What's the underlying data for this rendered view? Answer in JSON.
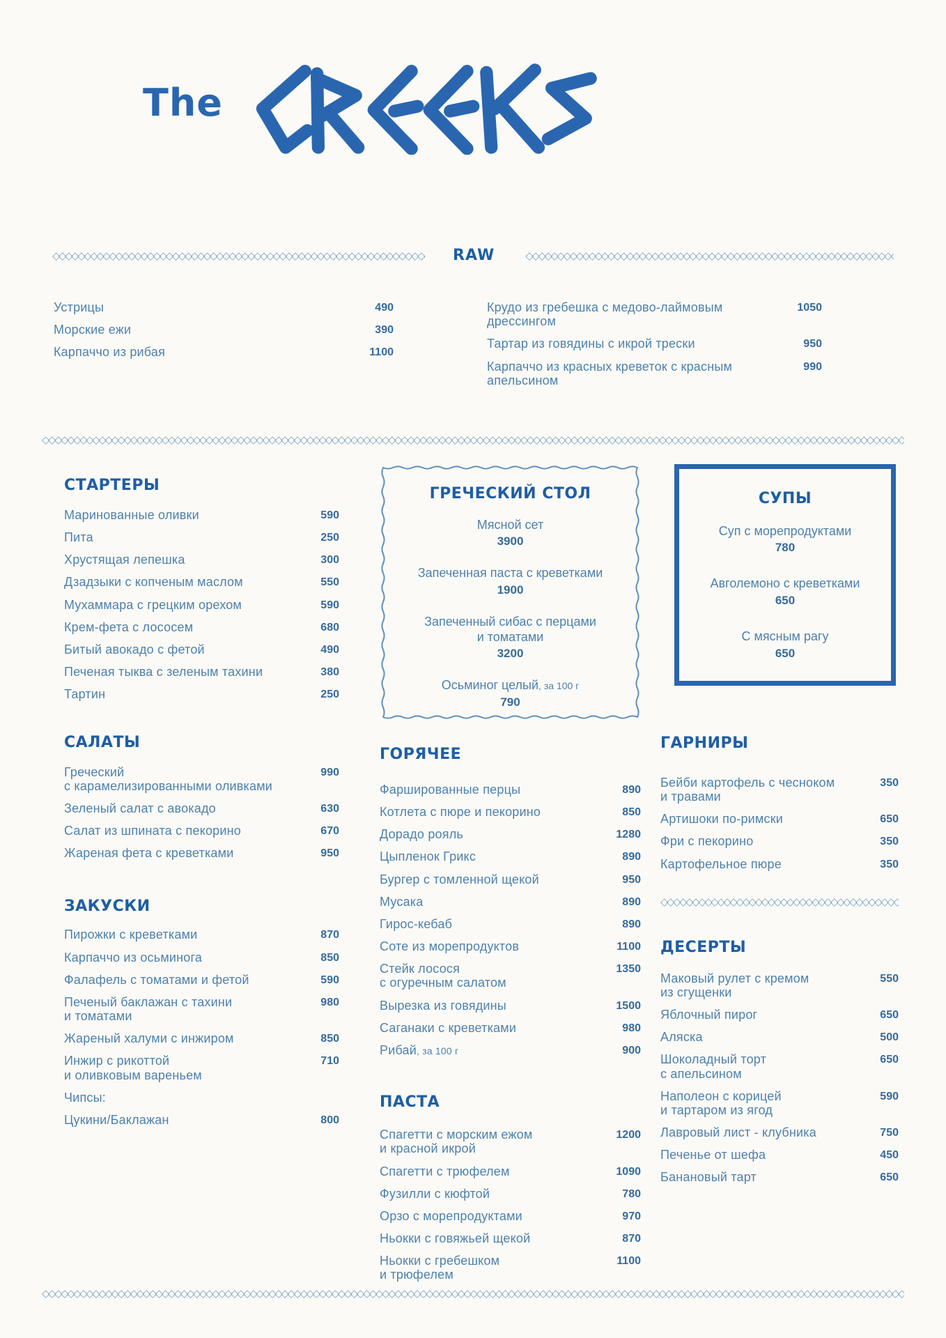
{
  "logo": {
    "the": "The",
    "name": "GREEKS"
  },
  "decor": {
    "divider_glyph": "◇"
  },
  "colors": {
    "paper": "#fbfaf6",
    "heading_blue": "#1e5ea6",
    "item_blue": "#4e81ad",
    "price_blue": "#366b9e",
    "divider_blue": "#7ba3c6",
    "logo_blue": "#2a66b0",
    "soup_box_border": "#2a65ad"
  },
  "raw": {
    "title": "RAW",
    "left": [
      {
        "name": "Устрицы",
        "price": "490"
      },
      {
        "name": "Морские ежи",
        "price": "390"
      },
      {
        "name": "Карпаччо из рибая",
        "price": "1100"
      }
    ],
    "right": [
      {
        "name": "Крудо из гребешка с медово-лаймовым дрессингом",
        "price": "1050"
      },
      {
        "name": "Тартар из говядины с икрой трески",
        "price": "950"
      },
      {
        "name": "Карпаччо из красных креветок с красным апельсином",
        "price": "990"
      }
    ]
  },
  "sections": {
    "starters": {
      "title": "СТАРТЕРЫ",
      "items": [
        {
          "name": "Маринованные оливки",
          "price": "590"
        },
        {
          "name": "Пита",
          "price": "250"
        },
        {
          "name": "Хрустящая лепешка",
          "price": "300"
        },
        {
          "name": "Дзадзыки с копченым маслом",
          "price": "550"
        },
        {
          "name": "Мухаммара с грецким орехом",
          "price": "590"
        },
        {
          "name": "Крем-фета с лососем",
          "price": "680"
        },
        {
          "name": "Битый авокадо с фетой",
          "price": "490"
        },
        {
          "name": "Печеная тыква с зеленым тахини",
          "price": "380"
        },
        {
          "name": "Тартин",
          "price": "250"
        }
      ]
    },
    "salads": {
      "title": "САЛАТЫ",
      "items": [
        {
          "name": "Греческий\nс карамелизированными оливками",
          "price": "990"
        },
        {
          "name": "Зеленый салат с авокадо",
          "price": "630"
        },
        {
          "name": "Салат из шпината с пекорино",
          "price": "670"
        },
        {
          "name": "Жареная фета с креветками",
          "price": "950"
        }
      ]
    },
    "snacks": {
      "title": "ЗАКУСКИ",
      "items": [
        {
          "name": "Пирожки с креветками",
          "price": "870"
        },
        {
          "name": "Карпаччо из осьминога",
          "price": "850"
        },
        {
          "name": "Фалафель с томатами и фетой",
          "price": "590"
        },
        {
          "name": "Печеный баклажан с тахини\nи томатами",
          "price": "980"
        },
        {
          "name": "Жареный халуми с инжиром",
          "price": "850"
        },
        {
          "name": "Инжир с рикоттой\nи оливковым вареньем",
          "price": "710"
        },
        {
          "name": "Чипсы:",
          "price": ""
        },
        {
          "name": "Цукини/Баклажан",
          "price": "800"
        }
      ]
    },
    "greek_table": {
      "title": "ГРЕЧЕСКИЙ СТОЛ",
      "items": [
        {
          "name": "Мясной сет",
          "price": "3900"
        },
        {
          "name": "Запеченная паста с креветками",
          "price": "1900"
        },
        {
          "name": "Запеченный сибас с перцами\nи томатами",
          "price": "3200"
        },
        {
          "name": "Осьминог целый",
          "note": ", за 100 г",
          "price": "790"
        }
      ]
    },
    "soups": {
      "title": "СУПЫ",
      "items": [
        {
          "name": "Суп с морепродуктами",
          "price": "780"
        },
        {
          "name": "Авголемоно с креветками",
          "price": "650"
        },
        {
          "name": "С мясным рагу",
          "price": "650"
        }
      ]
    },
    "hot": {
      "title": "ГОРЯЧЕЕ",
      "items": [
        {
          "name": "Фаршированные перцы",
          "price": "890"
        },
        {
          "name": "Котлета с пюре и пекорино",
          "price": "850"
        },
        {
          "name": "Дорадо рояль",
          "price": "1280"
        },
        {
          "name": "Цыпленок Грикс",
          "price": "890"
        },
        {
          "name": "Бургер с томленной щекой",
          "price": "950"
        },
        {
          "name": "Мусака",
          "price": "890"
        },
        {
          "name": "Гирос-кебаб",
          "price": "890"
        },
        {
          "name": "Соте из морепродуктов",
          "price": "1100"
        },
        {
          "name": "Стейк лосося\nс огуречным салатом",
          "price": "1350"
        },
        {
          "name": "Вырезка из говядины",
          "price": "1500"
        },
        {
          "name": "Саганаки с креветками",
          "price": "980"
        },
        {
          "name": "Рибай",
          "note": ", за 100 г",
          "price": "900"
        }
      ]
    },
    "pasta": {
      "title": "ПАСТА",
      "items": [
        {
          "name": "Спагетти с морским ежом\nи красной икрой",
          "price": "1200"
        },
        {
          "name": "Спагетти с трюфелем",
          "price": "1090"
        },
        {
          "name": "Фузилли с кюфтой",
          "price": "780"
        },
        {
          "name": "Орзо с морепродуктами",
          "price": "970"
        },
        {
          "name": "Ньокки с говяжьей щекой",
          "price": "870"
        },
        {
          "name": "Ньокки с гребешком\nи трюфелем",
          "price": "1100"
        }
      ]
    },
    "sides": {
      "title": "ГАРНИРЫ",
      "items": [
        {
          "name": "Бейби картофель с чесноком\nи травами",
          "price": "350"
        },
        {
          "name": "Артишоки по-римски",
          "price": "650"
        },
        {
          "name": "Фри с пекорино",
          "price": "350"
        },
        {
          "name": "Картофельное пюре",
          "price": "350"
        }
      ]
    },
    "desserts": {
      "title": "ДЕСЕРТЫ",
      "items": [
        {
          "name": "Маковый рулет с кремом\nиз сгущенки",
          "price": "550"
        },
        {
          "name": "Яблочный пирог",
          "price": "650"
        },
        {
          "name": "Аляска",
          "price": "500"
        },
        {
          "name": "Шоколадный торт\nс апельсином",
          "price": "650"
        },
        {
          "name": "Наполеон с корицей\nи тартаром из ягод",
          "price": "590"
        },
        {
          "name": "Лавровый лист - клубника",
          "price": "750"
        },
        {
          "name": "Печенье от шефа",
          "price": "450"
        },
        {
          "name": "Банановый тарт",
          "price": "650"
        }
      ]
    }
  }
}
